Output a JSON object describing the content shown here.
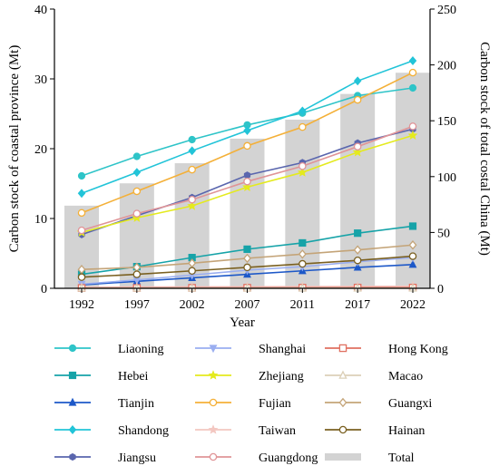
{
  "chart_data": {
    "type": "line",
    "subtype": "dual-axis line chart with bar totals",
    "categories": [
      "1992",
      "1997",
      "2002",
      "2007",
      "2011",
      "2017",
      "2022"
    ],
    "xlabel": "Year",
    "ylabel_left": "Carbon stock of coastal province (Mt)",
    "ylabel_right": "Carbon stock of total costal China (Mt)",
    "ylim_left": [
      0,
      40
    ],
    "ylim_right": [
      0,
      250
    ],
    "yticks_left": [
      "0",
      "10",
      "20",
      "30",
      "40"
    ],
    "yticks_right": [
      "0",
      "50",
      "100",
      "150",
      "200",
      "250"
    ],
    "grid": false,
    "legend_position": "bottom",
    "bars": {
      "name": "Total",
      "axis": "right",
      "color": "#d3d3d3",
      "values": [
        74,
        94,
        112,
        134,
        151,
        174,
        193
      ]
    },
    "series": [
      {
        "name": "Liaoning",
        "color": "#2ec4c8",
        "marker": "circle",
        "values": [
          16.1,
          18.9,
          21.3,
          23.4,
          25.1,
          27.6,
          28.7
        ]
      },
      {
        "name": "Hebei",
        "color": "#16a3a8",
        "marker": "square",
        "values": [
          2.0,
          3.1,
          4.4,
          5.6,
          6.5,
          7.9,
          8.9
        ]
      },
      {
        "name": "Tianjin",
        "color": "#1d58c8",
        "marker": "triangle",
        "values": [
          0.5,
          1.0,
          1.5,
          2.0,
          2.5,
          3.0,
          3.4
        ]
      },
      {
        "name": "Shandong",
        "color": "#22c4d8",
        "marker": "diamond",
        "values": [
          13.6,
          16.6,
          19.7,
          22.6,
          25.4,
          29.7,
          32.6
        ]
      },
      {
        "name": "Jiangsu",
        "color": "#5a66ae",
        "marker": "hexagon",
        "values": [
          7.7,
          10.4,
          13.0,
          16.2,
          18.0,
          20.8,
          22.8
        ]
      },
      {
        "name": "Shanghai",
        "color": "#9aaef0",
        "marker": "triangle-down",
        "values": [
          0.6,
          1.2,
          1.9,
          2.6,
          3.1,
          3.8,
          4.4
        ]
      },
      {
        "name": "Zhejiang",
        "color": "#e4ea1e",
        "marker": "star",
        "values": [
          8.0,
          10.1,
          11.8,
          14.5,
          16.6,
          19.5,
          21.9
        ]
      },
      {
        "name": "Fujian",
        "color": "#f4b038",
        "marker": "circle-open",
        "values": [
          10.8,
          13.9,
          17.0,
          20.4,
          23.1,
          27.0,
          30.9
        ]
      },
      {
        "name": "Taiwan",
        "color": "#f3c7c1",
        "marker": "star",
        "values": [
          0.15,
          0.18,
          0.2,
          0.22,
          0.25,
          0.28,
          0.3
        ]
      },
      {
        "name": "Guangdong",
        "color": "#e09497",
        "marker": "circle-open",
        "values": [
          8.3,
          10.7,
          12.7,
          15.3,
          17.5,
          20.3,
          23.2
        ]
      },
      {
        "name": "Hong Kong",
        "color": "#e07060",
        "marker": "square-open",
        "values": [
          0.05,
          0.06,
          0.07,
          0.08,
          0.09,
          0.1,
          0.1
        ]
      },
      {
        "name": "Macao",
        "color": "#dcd0b8",
        "marker": "triangle-open",
        "values": [
          0.01,
          0.01,
          0.01,
          0.01,
          0.01,
          0.01,
          0.01
        ]
      },
      {
        "name": "Guangxi",
        "color": "#c4a478",
        "marker": "diamond-open",
        "values": [
          2.7,
          3.0,
          3.6,
          4.3,
          4.9,
          5.5,
          6.2
        ]
      },
      {
        "name": "Hainan",
        "color": "#7a6020",
        "marker": "circle-open",
        "values": [
          1.6,
          2.0,
          2.5,
          3.0,
          3.5,
          4.0,
          4.6
        ]
      },
      {
        "name": "Total",
        "color": "#d3d3d3",
        "marker": "bar",
        "values": null
      }
    ]
  }
}
